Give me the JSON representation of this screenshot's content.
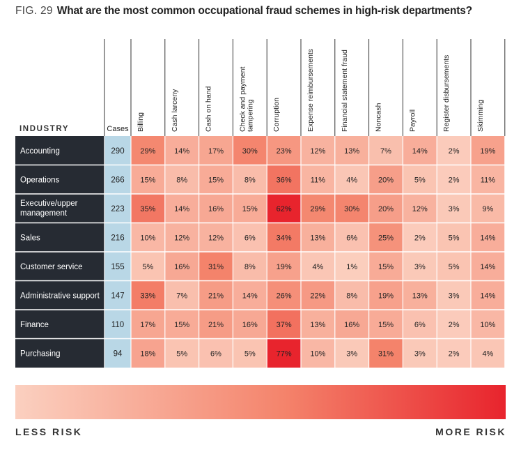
{
  "title": {
    "fig": "FIG. 29",
    "question": "What are the most common occupational fraud schemes in high-risk departments?"
  },
  "chart_data": {
    "type": "heatmap",
    "title": "What are the most common occupational fraud schemes in high-risk departments?",
    "row_header": "INDUSTRY",
    "cases_header": "Cases",
    "columns": [
      "Billing",
      "Cash larceny",
      "Cash on hand",
      "Check and payment tampering",
      "Corruption",
      "Expense reimbursements",
      "Financial statement fraud",
      "Noncash",
      "Payroll",
      "Register disbursements",
      "Skimming"
    ],
    "rows": [
      {
        "label": "Accounting",
        "cases": 290,
        "values": [
          29,
          14,
          17,
          30,
          23,
          12,
          13,
          7,
          14,
          2,
          19
        ]
      },
      {
        "label": "Operations",
        "cases": 266,
        "values": [
          15,
          8,
          15,
          8,
          36,
          11,
          4,
          20,
          5,
          2,
          11
        ]
      },
      {
        "label": "Executive/upper management",
        "cases": 223,
        "values": [
          35,
          14,
          16,
          15,
          62,
          29,
          30,
          20,
          12,
          3,
          9
        ]
      },
      {
        "label": "Sales",
        "cases": 216,
        "values": [
          10,
          12,
          12,
          6,
          34,
          13,
          6,
          25,
          2,
          5,
          14
        ]
      },
      {
        "label": "Customer service",
        "cases": 155,
        "values": [
          5,
          16,
          31,
          8,
          19,
          4,
          1,
          15,
          3,
          5,
          14
        ]
      },
      {
        "label": "Administrative support",
        "cases": 147,
        "values": [
          33,
          7,
          21,
          14,
          26,
          22,
          8,
          19,
          13,
          3,
          14
        ]
      },
      {
        "label": "Finance",
        "cases": 110,
        "values": [
          17,
          15,
          21,
          16,
          37,
          13,
          16,
          15,
          6,
          2,
          10
        ]
      },
      {
        "label": "Purchasing",
        "cases": 94,
        "values": [
          18,
          5,
          6,
          5,
          77,
          10,
          3,
          31,
          3,
          2,
          4
        ]
      }
    ],
    "value_suffix": "%",
    "legend": {
      "low_label": "LESS RISK",
      "high_label": "MORE RISK"
    }
  },
  "colors": {
    "row_label_bg": "#262b33",
    "cases_bg": "#b9d7e6",
    "low_risk": "#fbd0c0",
    "mid_risk": "#f4836b",
    "high_risk": "#e8242d"
  }
}
